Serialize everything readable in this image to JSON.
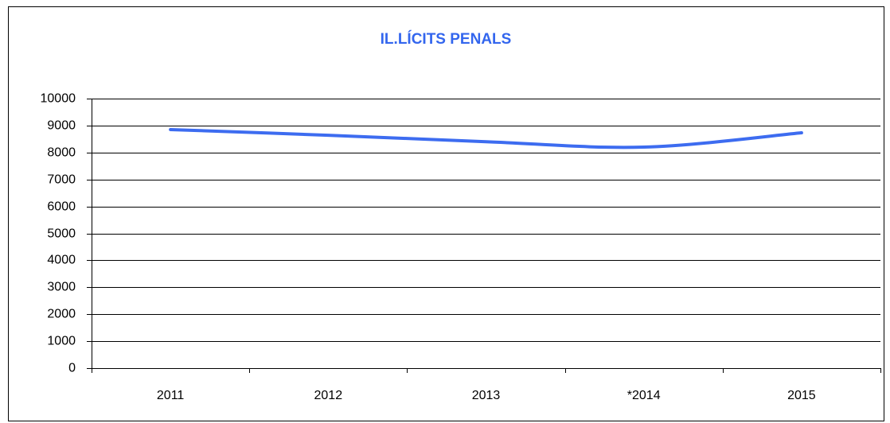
{
  "chart_data": {
    "type": "line",
    "title": "IL.LÍCITS PENALS",
    "categories": [
      "2011",
      "2012",
      "2013",
      "*2014",
      "2015"
    ],
    "series": [
      {
        "name": "IL.LÍCITS PENALS",
        "color": "#3d6cf0",
        "values": [
          8850,
          8640,
          8400,
          8200,
          8730
        ]
      }
    ],
    "ylim": [
      0,
      10000
    ],
    "yticks": [
      0,
      1000,
      2000,
      3000,
      4000,
      5000,
      6000,
      7000,
      8000,
      9000,
      10000
    ],
    "grid": true
  }
}
